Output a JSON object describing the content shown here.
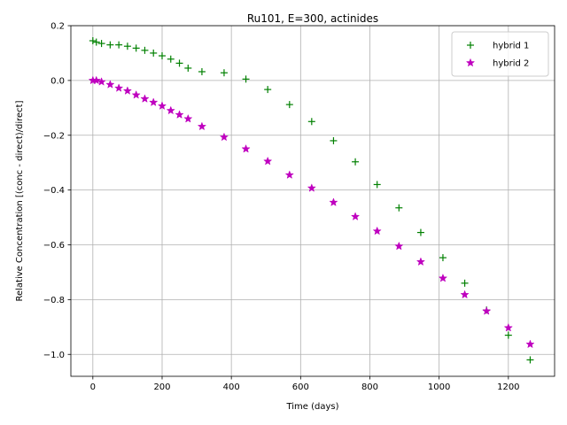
{
  "chart_data": {
    "type": "scatter",
    "title": "Ru101, E=300, actinides",
    "xlabel": "Time (days)",
    "ylabel": "Relative Concentration [(conc - direct)/direct]",
    "xlim": [
      -63.5,
      1333.5
    ],
    "ylim": [
      -1.08,
      0.2
    ],
    "xticks": [
      0,
      200,
      400,
      600,
      800,
      1000,
      1200
    ],
    "yticks": [
      -1.0,
      -0.8,
      -0.6,
      -0.4,
      -0.2,
      0.0,
      0.2
    ],
    "xtick_labels": [
      "0",
      "200",
      "400",
      "600",
      "800",
      "1000",
      "1200"
    ],
    "ytick_labels": [
      "−1.0",
      "−0.8",
      "−0.6",
      "−0.4",
      "−0.2",
      "0.0",
      "0.2"
    ],
    "grid": true,
    "legend_position": "top-right",
    "series": [
      {
        "name": "hybrid 1",
        "marker": "plus",
        "color": "#008000",
        "x": [
          0,
          10,
          25,
          50,
          75,
          100,
          125,
          150,
          175,
          200,
          225,
          250,
          275,
          315,
          379,
          442,
          505,
          568,
          632,
          695,
          758,
          821,
          884,
          947,
          1011,
          1074,
          1137,
          1200,
          1263
        ],
        "y": [
          0.145,
          0.14,
          0.135,
          0.13,
          0.13,
          0.125,
          0.118,
          0.11,
          0.1,
          0.09,
          0.078,
          0.063,
          0.045,
          0.032,
          0.028,
          0.005,
          -0.033,
          -0.088,
          -0.15,
          -0.22,
          -0.297,
          -0.38,
          -0.465,
          -0.555,
          -0.647,
          -0.74,
          -0.838,
          -0.93,
          -1.02
        ]
      },
      {
        "name": "hybrid 2",
        "marker": "star",
        "color": "#bf00bf",
        "x": [
          0,
          10,
          25,
          50,
          75,
          100,
          125,
          150,
          175,
          200,
          225,
          250,
          275,
          315,
          379,
          442,
          505,
          568,
          632,
          695,
          758,
          821,
          884,
          947,
          1011,
          1074,
          1137,
          1200,
          1263
        ],
        "y": [
          0.0,
          0.0,
          -0.005,
          -0.015,
          -0.028,
          -0.038,
          -0.053,
          -0.067,
          -0.08,
          -0.093,
          -0.11,
          -0.125,
          -0.14,
          -0.168,
          -0.207,
          -0.25,
          -0.295,
          -0.345,
          -0.393,
          -0.445,
          -0.497,
          -0.55,
          -0.605,
          -0.662,
          -0.722,
          -0.782,
          -0.842,
          -0.903,
          -0.963
        ]
      }
    ]
  }
}
